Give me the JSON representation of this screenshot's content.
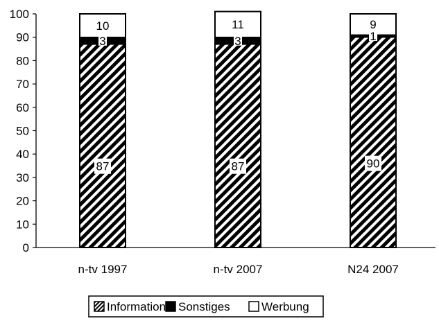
{
  "chart_data": {
    "type": "bar",
    "stacked": true,
    "categories": [
      "n-tv 1997",
      "n-tv 2007",
      "N24 2007"
    ],
    "series": [
      {
        "name": "Information",
        "values": [
          87,
          87,
          90
        ],
        "fill": "hatch"
      },
      {
        "name": "Sonstiges",
        "values": [
          3,
          3,
          1
        ],
        "fill": "#000000"
      },
      {
        "name": "Werbung",
        "values": [
          10,
          11,
          9
        ],
        "fill": "#ffffff"
      }
    ],
    "data_labels": [
      [
        "87",
        "87",
        "90"
      ],
      [
        "3",
        "3",
        "1"
      ],
      [
        "10",
        "11",
        "9"
      ]
    ],
    "y_ticks": [
      "0",
      "10",
      "20",
      "30",
      "40",
      "50",
      "60",
      "70",
      "80",
      "90",
      "100"
    ],
    "ylim": [
      0,
      100
    ],
    "grid": false,
    "legend_position": "bottom-center",
    "title": "",
    "xlabel": "",
    "ylabel": ""
  }
}
